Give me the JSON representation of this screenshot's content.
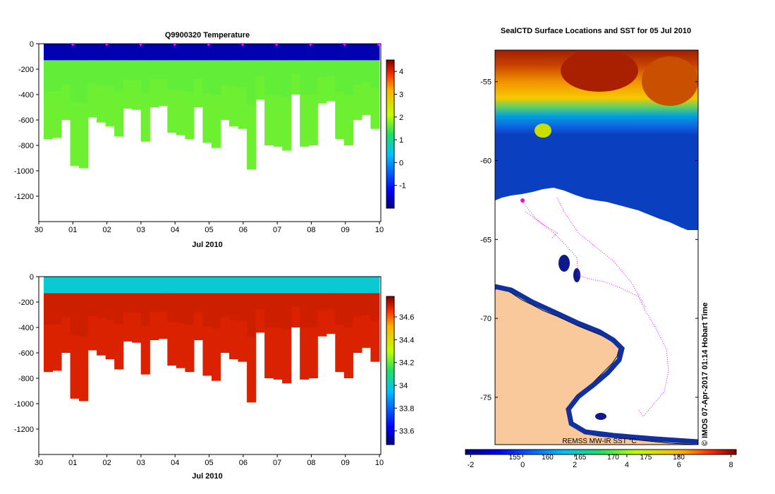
{
  "chart_data": [
    {
      "type": "heatmap",
      "title": "Q9900320  Temperature",
      "xlabel": "Jul 2010",
      "x_ticks": [
        "30",
        "01",
        "02",
        "03",
        "04",
        "05",
        "06",
        "07",
        "08",
        "09",
        "10"
      ],
      "y_ticks": [
        "0",
        "-200",
        "-400",
        "-600",
        "-800",
        "-1000",
        "-1200"
      ],
      "ylim": [
        -1400,
        0
      ],
      "colorbar_ticks": [
        "-1",
        "0",
        "1",
        "2",
        "3",
        "4"
      ],
      "colorbar_range": [
        -2,
        4.5
      ],
      "surface_value": -1.7,
      "upper_value": 1.6,
      "deep_value": 1.7,
      "profile_depths": [
        -750,
        -740,
        -600,
        -960,
        -980,
        -580,
        -620,
        -650,
        -730,
        -510,
        -520,
        -770,
        -500,
        -490,
        -700,
        -720,
        -750,
        -500,
        -780,
        -820,
        -600,
        -650,
        -670,
        -990,
        -440,
        -800,
        -810,
        -840,
        -400,
        -810,
        -800,
        -470,
        -450,
        -750,
        -800,
        -600,
        -560,
        -670
      ]
    },
    {
      "type": "heatmap",
      "title": "",
      "xlabel": "Jul 2010",
      "x_ticks": [
        "30",
        "01",
        "02",
        "03",
        "04",
        "05",
        "06",
        "07",
        "08",
        "09",
        "10"
      ],
      "y_ticks": [
        "0",
        "-200",
        "-400",
        "-600",
        "-800",
        "-1000",
        "-1200"
      ],
      "ylim": [
        -1400,
        0
      ],
      "colorbar_ticks": [
        "33.6",
        "33.8",
        "34",
        "34.2",
        "34.4",
        "34.6"
      ],
      "colorbar_range": [
        33.48,
        34.78
      ],
      "surface_value": 34.0,
      "upper_value": 34.7,
      "deep_value": 34.68
    },
    {
      "type": "heatmap",
      "title": "SealCTD Surface Locations and SST for 05 Jul 2010",
      "y_ticks": [
        "-55",
        "-60",
        "-65",
        "-70",
        "-75"
      ],
      "ylim": [
        -78,
        -53
      ],
      "colorbar_ticks_celsius": [
        "-2",
        "0",
        "2",
        "4",
        "6",
        "8"
      ],
      "colorbar_ticks_secondary": [
        "155",
        "160",
        "165",
        "170",
        "175",
        "180"
      ],
      "colorbar_range": [
        -2.2,
        8.2
      ],
      "colorbar_label": "REMSS MW-IR SST °C",
      "credit": "©  IMOS 07-Apr-2017 01:14 Hobart Time"
    }
  ],
  "colors": {
    "ocean_deep_blue": "#0e1a8c",
    "land": "#f9c89b",
    "track": "#ff00ff",
    "white": "#ffffff"
  }
}
